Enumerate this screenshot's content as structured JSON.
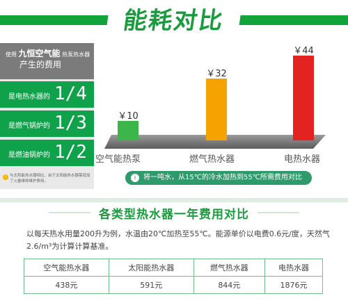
{
  "header": {
    "title": "能耗对比"
  },
  "panel": {
    "line1_prefix": "使用",
    "brand": "九恒空气能",
    "line1_suffix": "热泵热水器",
    "line2": "产生的费用",
    "rows": [
      {
        "label": "是电热水器的",
        "fraction": "1/4"
      },
      {
        "label": "是燃气锅炉的",
        "fraction": "1/3"
      },
      {
        "label": "是燃油锅炉的",
        "fraction": "1/2"
      }
    ],
    "note": "与太阳能热水器相比，由于太阳能热水器需增加了火量维修维护费用。"
  },
  "chart_data": {
    "type": "bar",
    "categories": [
      "空气能热泵",
      "燃气热水器",
      "电热水器"
    ],
    "values": [
      10,
      32,
      44
    ],
    "value_labels": [
      "￥10",
      "￥32",
      "￥44"
    ],
    "colors": [
      "#3cb54a",
      "#f5a300",
      "#e32222"
    ],
    "ylim": [
      0,
      44
    ],
    "caption": "将一吨水，从15℃的冷水加热到55℃所需费用对比"
  },
  "section": {
    "title": "各类型热水器一年费用对比",
    "description": "以每天热水用量200升为例，水温由20℃加热至55℃。能源单价以电费0.6元/度，天然气2.6/m³为计算计算基准。",
    "table": {
      "headers": [
        "空气能热水器",
        "太阳能热水器",
        "燃气热水器",
        "电热水器"
      ],
      "values": [
        "438元",
        "591元",
        "844元",
        "1876元"
      ]
    }
  }
}
